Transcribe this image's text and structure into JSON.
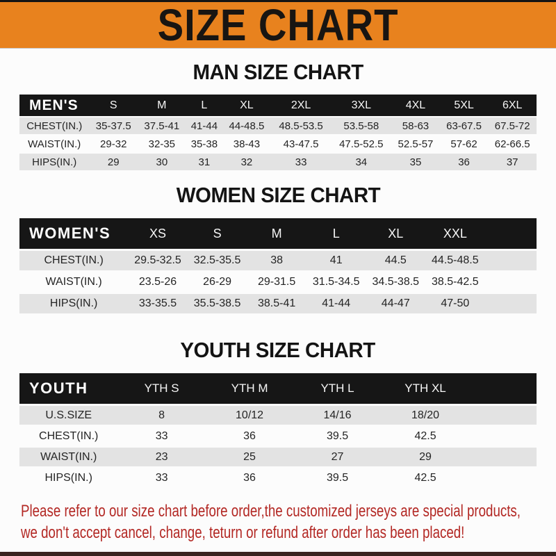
{
  "banner": {
    "title": "SIZE CHART"
  },
  "colors": {
    "banner_orange": "#E8821E",
    "band_black": "#161616",
    "row_gray": "#E3E3E3",
    "row_white": "#FCFCFC",
    "footer_red": "#B32824"
  },
  "sections": {
    "men": {
      "heading": "MAN SIZE CHART",
      "table": {
        "header": [
          "MEN'S",
          "S",
          "M",
          "L",
          "XL",
          "2XL",
          "3XL",
          "4XL",
          "5XL",
          "6XL"
        ],
        "rows": [
          [
            "CHEST(IN.)",
            "35-37.5",
            "37.5-41",
            "41-44",
            "44-48.5",
            "48.5-53.5",
            "53.5-58",
            "58-63",
            "63-67.5",
            "67.5-72"
          ],
          [
            "WAIST(IN.)",
            "29-32",
            "32-35",
            "35-38",
            "38-43",
            "43-47.5",
            "47.5-52.5",
            "52.5-57",
            "57-62",
            "62-66.5"
          ],
          [
            "HIPS(IN.)",
            "29",
            "30",
            "31",
            "32",
            "33",
            "34",
            "35",
            "36",
            "37"
          ]
        ]
      }
    },
    "women": {
      "heading": "WOMEN SIZE CHART",
      "table": {
        "header": [
          "WOMEN'S",
          "XS",
          "S",
          "M",
          "L",
          "XL",
          "XXL"
        ],
        "rows": [
          [
            "CHEST(IN.)",
            "29.5-32.5",
            "32.5-35.5",
            "38",
            "41",
            "44.5",
            "44.5-48.5"
          ],
          [
            "WAIST(IN.)",
            "23.5-26",
            "26-29",
            "29-31.5",
            "31.5-34.5",
            "34.5-38.5",
            "38.5-42.5"
          ],
          [
            "HIPS(IN.)",
            "33-35.5",
            "35.5-38.5",
            "38.5-41",
            "41-44",
            "44-47",
            "47-50"
          ]
        ]
      }
    },
    "youth": {
      "heading": "YOUTH SIZE CHART",
      "table": {
        "header": [
          "YOUTH",
          "YTH S",
          "YTH M",
          "YTH L",
          "YTH XL"
        ],
        "rows": [
          [
            "U.S.SIZE",
            "8",
            "10/12",
            "14/16",
            "18/20"
          ],
          [
            "CHEST(IN.)",
            "33",
            "36",
            "39.5",
            "42.5"
          ],
          [
            "WAIST(IN.)",
            "23",
            "25",
            "27",
            "29"
          ],
          [
            "HIPS(IN.)",
            "33",
            "36",
            "39.5",
            "42.5"
          ]
        ]
      }
    }
  },
  "footer": {
    "line1": "Please refer to our size chart before order,the customized jerseys are special products,",
    "line2": "we don't accept cancel, change, teturn or refund after order has been placed!"
  }
}
